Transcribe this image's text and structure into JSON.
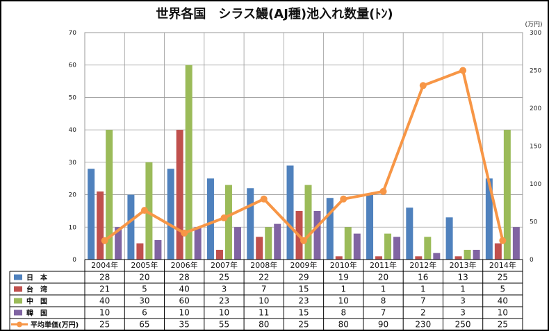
{
  "chart_data": {
    "type": "bar",
    "title": "世界各国　シラス鰻(AJ種)池入れ数量(ﾄﾝ)",
    "categories": [
      "2004年",
      "2005年",
      "2006年",
      "2007年",
      "2008年",
      "2009年",
      "2010年",
      "2011年",
      "2012年",
      "2013年",
      "2014年"
    ],
    "ylim": [
      0,
      70
    ],
    "y_ticks": [
      0,
      10,
      20,
      30,
      40,
      50,
      60,
      70
    ],
    "y2_label": "(万円)",
    "y2lim": [
      0,
      300
    ],
    "y2_ticks": [
      0,
      50,
      100,
      150,
      200,
      250,
      300
    ],
    "grid": true,
    "series": [
      {
        "name": "日　本",
        "type": "bar",
        "color": "#4f81bd",
        "values": [
          28,
          20,
          28,
          25,
          22,
          29,
          19,
          20,
          16,
          13,
          25
        ]
      },
      {
        "name": "台　湾",
        "type": "bar",
        "color": "#c0504d",
        "values": [
          21,
          5,
          40,
          3,
          7,
          15,
          1,
          1,
          1,
          1,
          5
        ]
      },
      {
        "name": "中　国",
        "type": "bar",
        "color": "#9bbb59",
        "values": [
          40,
          30,
          60,
          23,
          10,
          23,
          10,
          8,
          7,
          3,
          40
        ]
      },
      {
        "name": "韓　国",
        "type": "bar",
        "color": "#8064a2",
        "values": [
          10,
          6,
          10,
          10,
          11,
          15,
          8,
          7,
          2,
          3,
          10
        ]
      },
      {
        "name": "平均単価(万円)",
        "type": "line",
        "axis": "secondary",
        "color": "#f79646",
        "values": [
          25,
          65,
          35,
          55,
          80,
          25,
          80,
          90,
          230,
          250,
          25
        ]
      }
    ]
  }
}
